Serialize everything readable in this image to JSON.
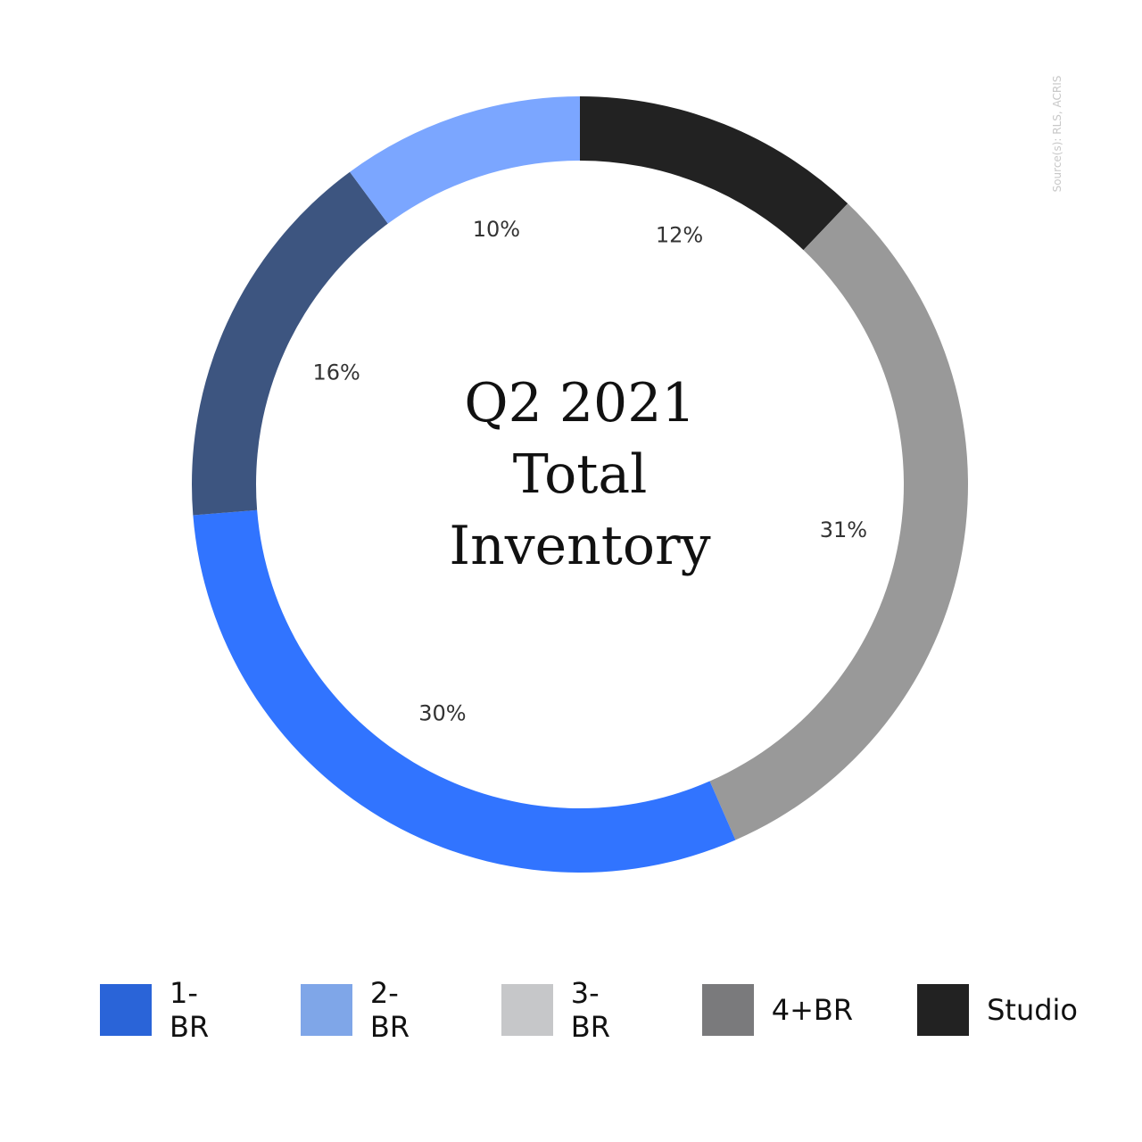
{
  "chart_data": {
    "type": "donut",
    "title": "Q2 2021 Total Inventory",
    "source": "Source(s): RLS, ACRIS",
    "values": [
      12,
      31,
      30,
      16,
      10
    ],
    "value_labels": [
      "12%",
      "31%",
      "30%",
      "16%",
      "10%"
    ],
    "colors": [
      "#222222",
      "#999999",
      "#3174ff",
      "#3d5580",
      "#7ba6ff"
    ],
    "legend": [
      {
        "name": "1-BR",
        "color": "#2a64d8"
      },
      {
        "name": "2-BR",
        "color": "#7fa6e8"
      },
      {
        "name": "3-BR",
        "color": "#c6c7c9"
      },
      {
        "name": "4+BR",
        "color": "#7a7a7c"
      },
      {
        "name": "Studio",
        "color": "#222222"
      }
    ]
  }
}
